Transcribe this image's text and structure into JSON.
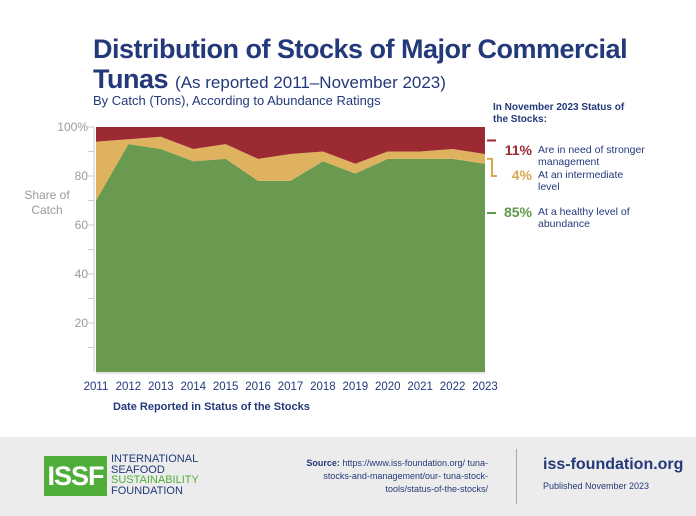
{
  "chart_data": {
    "type": "area",
    "title": "Distribution of Stocks of Major Commercial Tunas",
    "title_suffix": "(As reported 2011–November 2023)",
    "subtitle": "By Catch (Tons), According to Abundance Ratings",
    "xlabel": "Date Reported in Status of the Stocks",
    "ylabel": "Share of Catch",
    "ylim": [
      0,
      100
    ],
    "yticks": [
      "20",
      "40",
      "60",
      "80",
      "100%"
    ],
    "x": [
      "2011",
      "2012",
      "2013",
      "2014",
      "2015",
      "2016",
      "2017",
      "2018",
      "2019",
      "2020",
      "2021",
      "2022",
      "2023"
    ],
    "stacked": true,
    "series": [
      {
        "name": "At a healthy level of abundance",
        "color": "#6a9a50",
        "values": [
          70,
          93,
          91,
          86,
          87,
          78,
          78,
          86,
          81,
          87,
          87,
          87,
          85
        ]
      },
      {
        "name": "At an intermediate level",
        "color": "#deb25f",
        "values": [
          24,
          2,
          5,
          5,
          6,
          9,
          11,
          4,
          4,
          3,
          3,
          4,
          4
        ]
      },
      {
        "name": "Are in need of stronger management",
        "color": "#9b2a32",
        "values": [
          6,
          5,
          4,
          9,
          7,
          13,
          11,
          10,
          15,
          10,
          10,
          9,
          11
        ]
      }
    ]
  },
  "legend": {
    "heading": "In November 2023 Status of the Stocks:",
    "items": [
      {
        "pct": "11%",
        "label": "Are in need of stronger management",
        "color": "#9b2a32"
      },
      {
        "pct": "4%",
        "label": "At an intermediate level",
        "color": "#d9a84e"
      },
      {
        "pct": "85%",
        "label": "At a healthy level of abundance",
        "color": "#5e9a47"
      }
    ]
  },
  "footer": {
    "logo": "ISSF",
    "org_lines": [
      "INTERNATIONAL",
      "SEAFOOD",
      "SUSTAINABILITY",
      "FOUNDATION"
    ],
    "source_label": "Source:",
    "source_text": "https://www.iss-foundation.org/ tuna-stocks-and-management/our- tuna-stock-tools/status-of-the-stocks/",
    "site": "iss-foundation.org",
    "published": "Published November 2023"
  }
}
